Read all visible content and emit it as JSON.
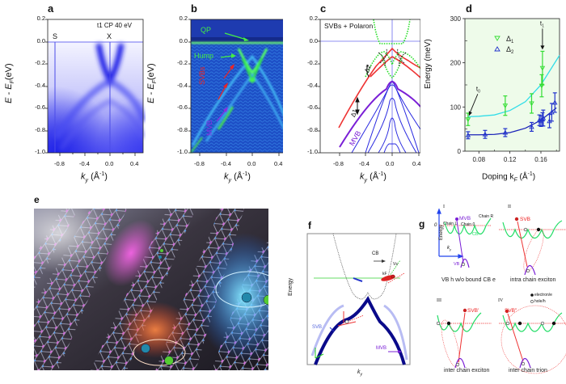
{
  "figure": {
    "panels": {
      "a": {
        "label": "a",
        "annotation": "t1  CP  40 eV",
        "point_labels": [
          "S",
          "X"
        ],
        "ylabel": "E - E",
        "ylabel_sub": "F",
        "ylabel_unit": "(eV)",
        "xlabel": "k",
        "xlabel_sub": "y",
        "xlabel_unit": "(Å",
        "xlabel_sup": "-1",
        "xticks": [
          "-0.8",
          "-0.4",
          "0.0",
          "0.4"
        ],
        "yticks": [
          "0.2",
          "0.0",
          "-0.2",
          "-0.4",
          "-0.6",
          "-0.8",
          "-1.0"
        ]
      },
      "b": {
        "label": "b",
        "annotations": [
          "QP",
          "Hump",
          "SVBs",
          "MVB"
        ],
        "ylabel": "E - E",
        "ylabel_sub": "F",
        "ylabel_unit": "(eV)",
        "xlabel": "k",
        "xlabel_sub": "y",
        "xlabel_unit": "(Å",
        "xlabel_sup": "-1",
        "xticks": [
          "-0.8",
          "-0.4",
          "0.0",
          "0.4"
        ],
        "yticks": [
          "0.2",
          "0.0",
          "-0.2",
          "-0.4",
          "-0.6",
          "-0.8",
          "-1.0"
        ]
      },
      "c": {
        "label": "c",
        "title": "SVBs + Polaron",
        "annotations": [
          "Δ2",
          "Δ1",
          "MVB"
        ],
        "xlabel": "k",
        "xlabel_sub": "y",
        "xlabel_unit": "(Å",
        "xlabel_sup": "-1",
        "xticks": [
          "-0.8",
          "-0.4",
          "0.0",
          "0.4"
        ],
        "yticks": [
          "0.2",
          "0.0",
          "-0.2",
          "-0.4",
          "-0.6",
          "-0.8",
          "-1.0"
        ]
      },
      "e": {
        "label": "e",
        "image_description": "artistic rendering of atomic chains with excitons"
      },
      "f": {
        "label": "f",
        "ylabel": "Energy",
        "xlabel": "k",
        "xlabel_sub": "y",
        "annotations": [
          "CB",
          "SVB",
          "MVB",
          "Vs",
          "kF"
        ]
      },
      "g": {
        "label": "g",
        "ylabel": "Energy",
        "xlabel": "k",
        "xlabel_sub": "y",
        "zero_label": "0",
        "legend": [
          "electron/e",
          "hole/h"
        ],
        "subpanels": [
          {
            "roman": "I",
            "state": "MVB",
            "caption": "VB h w/o bound CB e",
            "chain_labels": [
              "Chain L",
              "Chain 0",
              "Chain R"
            ],
            "band_labels": [
              "CB",
              "VB"
            ]
          },
          {
            "roman": "II",
            "state": "SVB",
            "caption": "intra chain exciton"
          },
          {
            "roman": "III",
            "state": "SVB'",
            "caption": "inter chain exciton"
          },
          {
            "roman": "IV",
            "state": "SVB\"",
            "caption": "inter chain trion"
          }
        ]
      }
    },
    "colors": {
      "arpes_blue": "#2a2cf0",
      "green": "#22dd44",
      "red": "#ee2222",
      "purple": "#7a1fd6",
      "cyan": "#22dde8",
      "navy": "#1a1aa8",
      "panel_d_bg": "#eefbea"
    }
  },
  "chart_data": {
    "type": "scatter",
    "panel": "d",
    "title": "",
    "xlabel": "Doping k_F (Å^-1)",
    "xlabel_main": "Doping k",
    "xlabel_sub": "F",
    "xlabel_unit": "(Å",
    "xlabel_sup": "-1",
    "ylabel": "Energy (meV)",
    "xlim": [
      0.062,
      0.184
    ],
    "ylim": [
      0,
      300
    ],
    "xticks": [
      0.08,
      0.12,
      0.16
    ],
    "xtick_labels": [
      "0.08",
      "0.12",
      "0.16"
    ],
    "yticks": [
      0,
      100,
      200,
      300
    ],
    "ytick_labels": [
      "0",
      "100",
      "200",
      "300"
    ],
    "legend_position": "top-left",
    "annotations": [
      {
        "text": "t",
        "sub": "0",
        "x": 0.066,
        "y": 78
      },
      {
        "text": "t",
        "sub": "1",
        "x": 0.162,
        "y": 228
      }
    ],
    "series": [
      {
        "name": "Δ1",
        "legend_label": "Δ",
        "legend_sub": "1",
        "marker": "triangle-down",
        "color": "#33dd33",
        "x": [
          0.066,
          0.114,
          0.148,
          0.161,
          0.162
        ],
        "y": [
          72,
          103,
          108,
          148,
          188
        ],
        "err": [
          14,
          22,
          22,
          25,
          38
        ]
      },
      {
        "name": "Δ2",
        "legend_label": "Δ",
        "legend_sub": "2",
        "marker": "triangle-up",
        "color": "#2233cc",
        "x": [
          0.066,
          0.088,
          0.114,
          0.148,
          0.158,
          0.16,
          0.162,
          0.163,
          0.171,
          0.174,
          0.178
        ],
        "y": [
          36,
          38,
          42,
          55,
          70,
          68,
          72,
          75,
          68,
          88,
          110
        ],
        "err": [
          8,
          9,
          9,
          10,
          12,
          12,
          15,
          18,
          15,
          20,
          22
        ]
      }
    ],
    "fits": [
      {
        "name": "Δ1 fit",
        "color": "#33dde8",
        "x": [
          0.066,
          0.08,
          0.1,
          0.12,
          0.14,
          0.16,
          0.184
        ],
        "y": [
          78,
          79,
          82,
          92,
          112,
          150,
          217
        ]
      },
      {
        "name": "Δ2 fit",
        "color": "#1a22b8",
        "x": [
          0.066,
          0.08,
          0.1,
          0.12,
          0.14,
          0.16,
          0.18
        ],
        "y": [
          37,
          37,
          38,
          42,
          52,
          70,
          98
        ]
      }
    ]
  }
}
